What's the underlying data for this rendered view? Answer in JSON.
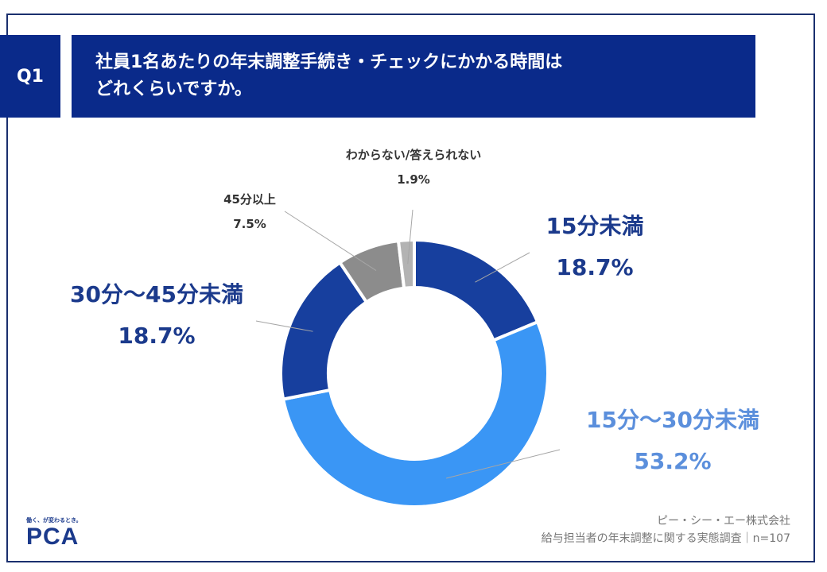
{
  "question": {
    "badge": "Q1",
    "title_line1": "社員1名あたりの年末調整手続き・チェックにかかる時間は",
    "title_line2": "どれくらいですか。"
  },
  "chart_data": {
    "type": "pie",
    "donut": true,
    "categories": [
      "15分未満",
      "15分～30分未満",
      "30分～45分未満",
      "45分以上",
      "わからない/答えられない"
    ],
    "values": [
      18.7,
      53.2,
      18.7,
      7.5,
      1.9
    ],
    "value_labels": [
      "18.7%",
      "53.2%",
      "18.7%",
      "7.5%",
      "1.9%"
    ],
    "colors": [
      "#173f9e",
      "#3a96f5",
      "#173f9e",
      "#8c8c8c",
      "#b3b3b3"
    ],
    "label_colors": [
      "#1b3a8c",
      "#5b8fdc",
      "#1b3a8c",
      "#333333",
      "#333333"
    ],
    "start_angle_deg": 0,
    "direction": "clockwise"
  },
  "footer": {
    "logo_tagline": "働く、が変わるとき。",
    "logo_text": "PCA",
    "company": "ピー・シー・エー株式会社",
    "survey": "給与担当者の年末調整に関する実態調査｜n=107"
  }
}
